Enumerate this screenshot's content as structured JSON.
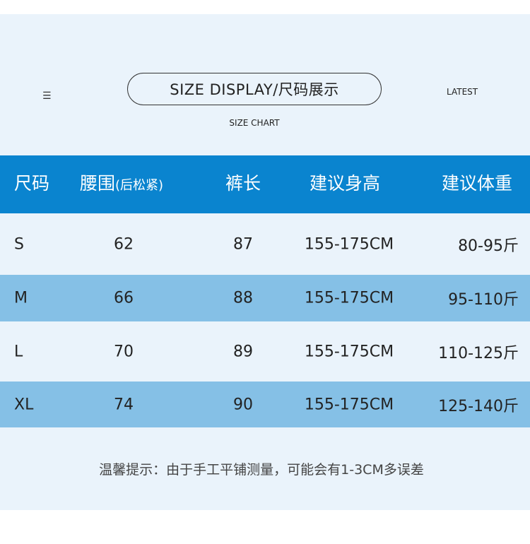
{
  "header": {
    "menu_icon": "hamburger-icon",
    "title": "SIZE DISPLAY/尺码展示",
    "latest": "LATEST",
    "subtitle": "SIZE CHART"
  },
  "colors": {
    "header_bg": "#0a84cf",
    "row_alt": "#85c0e6",
    "panel": "#eaf3fb"
  },
  "table": {
    "columns": [
      "尺码",
      "腰围",
      "(后松紧)",
      "裤长",
      "建议身高",
      "建议体重"
    ],
    "rows": [
      [
        "S",
        "62",
        "87",
        "155-175CM",
        "80-95斤"
      ],
      [
        "M",
        "66",
        "88",
        "155-175CM",
        "95-110斤"
      ],
      [
        "L",
        "70",
        "89",
        "155-175CM",
        "110-125斤"
      ],
      [
        "XL",
        "74",
        "90",
        "155-175CM",
        "125-140斤"
      ]
    ]
  },
  "note": "温馨提示：由于手工平铺测量，可能会有1-3CM多误差"
}
